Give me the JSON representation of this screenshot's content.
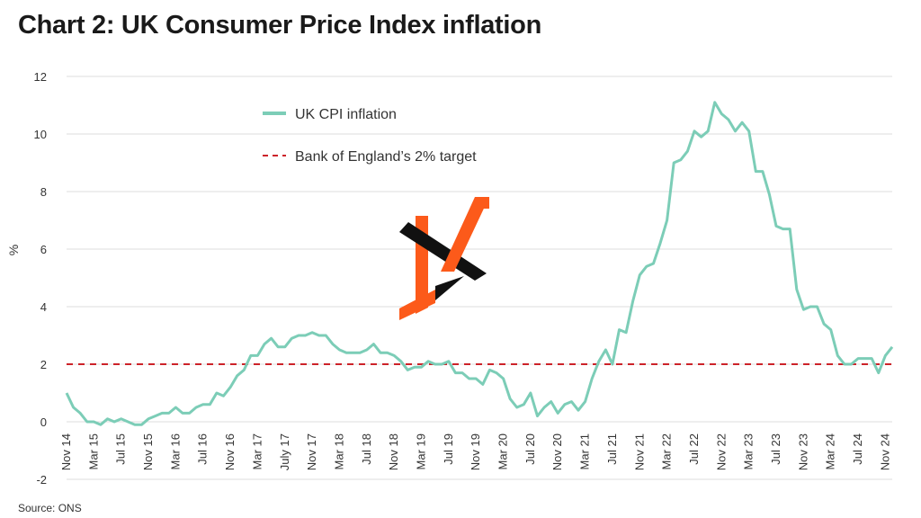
{
  "header": {
    "title": "Chart 2: UK Consumer Price Index inflation"
  },
  "footer": {
    "source": "Source: ONS"
  },
  "colors": {
    "cpi_line": "#7ccdb7",
    "target_line": "#cc2229",
    "grid": "#dddddd",
    "logo_orange": "#fc5a1a",
    "logo_black": "#111111"
  },
  "logo": {
    "icon": "watermark-logo"
  },
  "chart_data": {
    "type": "line",
    "title": "Chart 2: UK Consumer Price Index inflation",
    "xlabel": "",
    "ylabel": "%",
    "ylim": [
      -2,
      12
    ],
    "yticks": [
      -2,
      0,
      2,
      4,
      6,
      8,
      10,
      12
    ],
    "grid": true,
    "legend_placement": "upper-left",
    "x_start": "Nov 14",
    "x_tick_labels": [
      "Nov 14",
      "Mar 15",
      "Jul 15",
      "Nov 15",
      "Mar 16",
      "Jul 16",
      "Nov 16",
      "Mar 17",
      "July 17",
      "Nov 17",
      "Mar 18",
      "Jul 18",
      "Nov 18",
      "Mar 19",
      "Jul 19",
      "Nov 19",
      "Mar 20",
      "Jul 20",
      "Nov 20",
      "Mar 21",
      "Jul 21",
      "Nov 21",
      "Mar 22",
      "Jul 22",
      "Nov 22",
      "Mar 23",
      "Jul 23",
      "Nov 23",
      "Mar 24",
      "Jul 24",
      "Nov 24"
    ],
    "series": [
      {
        "name": "UK CPI inflation",
        "style": "solid",
        "values": [
          1.0,
          0.5,
          0.3,
          0.0,
          0.0,
          -0.1,
          0.1,
          0.0,
          0.1,
          0.0,
          -0.1,
          -0.1,
          0.1,
          0.2,
          0.3,
          0.3,
          0.5,
          0.3,
          0.3,
          0.5,
          0.6,
          0.6,
          1.0,
          0.9,
          1.2,
          1.6,
          1.8,
          2.3,
          2.3,
          2.7,
          2.9,
          2.6,
          2.6,
          2.9,
          3.0,
          3.0,
          3.1,
          3.0,
          3.0,
          2.7,
          2.5,
          2.4,
          2.4,
          2.4,
          2.5,
          2.7,
          2.4,
          2.4,
          2.3,
          2.1,
          1.8,
          1.9,
          1.9,
          2.1,
          2.0,
          2.0,
          2.1,
          1.7,
          1.7,
          1.5,
          1.5,
          1.3,
          1.8,
          1.7,
          1.5,
          0.8,
          0.5,
          0.6,
          1.0,
          0.2,
          0.5,
          0.7,
          0.3,
          0.6,
          0.7,
          0.4,
          0.7,
          1.5,
          2.1,
          2.5,
          2.0,
          3.2,
          3.1,
          4.2,
          5.1,
          5.4,
          5.5,
          6.2,
          7.0,
          9.0,
          9.1,
          9.4,
          10.1,
          9.9,
          10.1,
          11.1,
          10.7,
          10.5,
          10.1,
          10.4,
          10.1,
          8.7,
          8.7,
          7.9,
          6.8,
          6.7,
          6.7,
          4.6,
          3.9,
          4.0,
          4.0,
          3.4,
          3.2,
          2.3,
          2.0,
          2.0,
          2.2,
          2.2,
          2.2,
          1.7,
          2.3,
          2.6
        ]
      },
      {
        "name": "Bank of England’s 2% target",
        "style": "dashed",
        "value": 2
      }
    ]
  }
}
